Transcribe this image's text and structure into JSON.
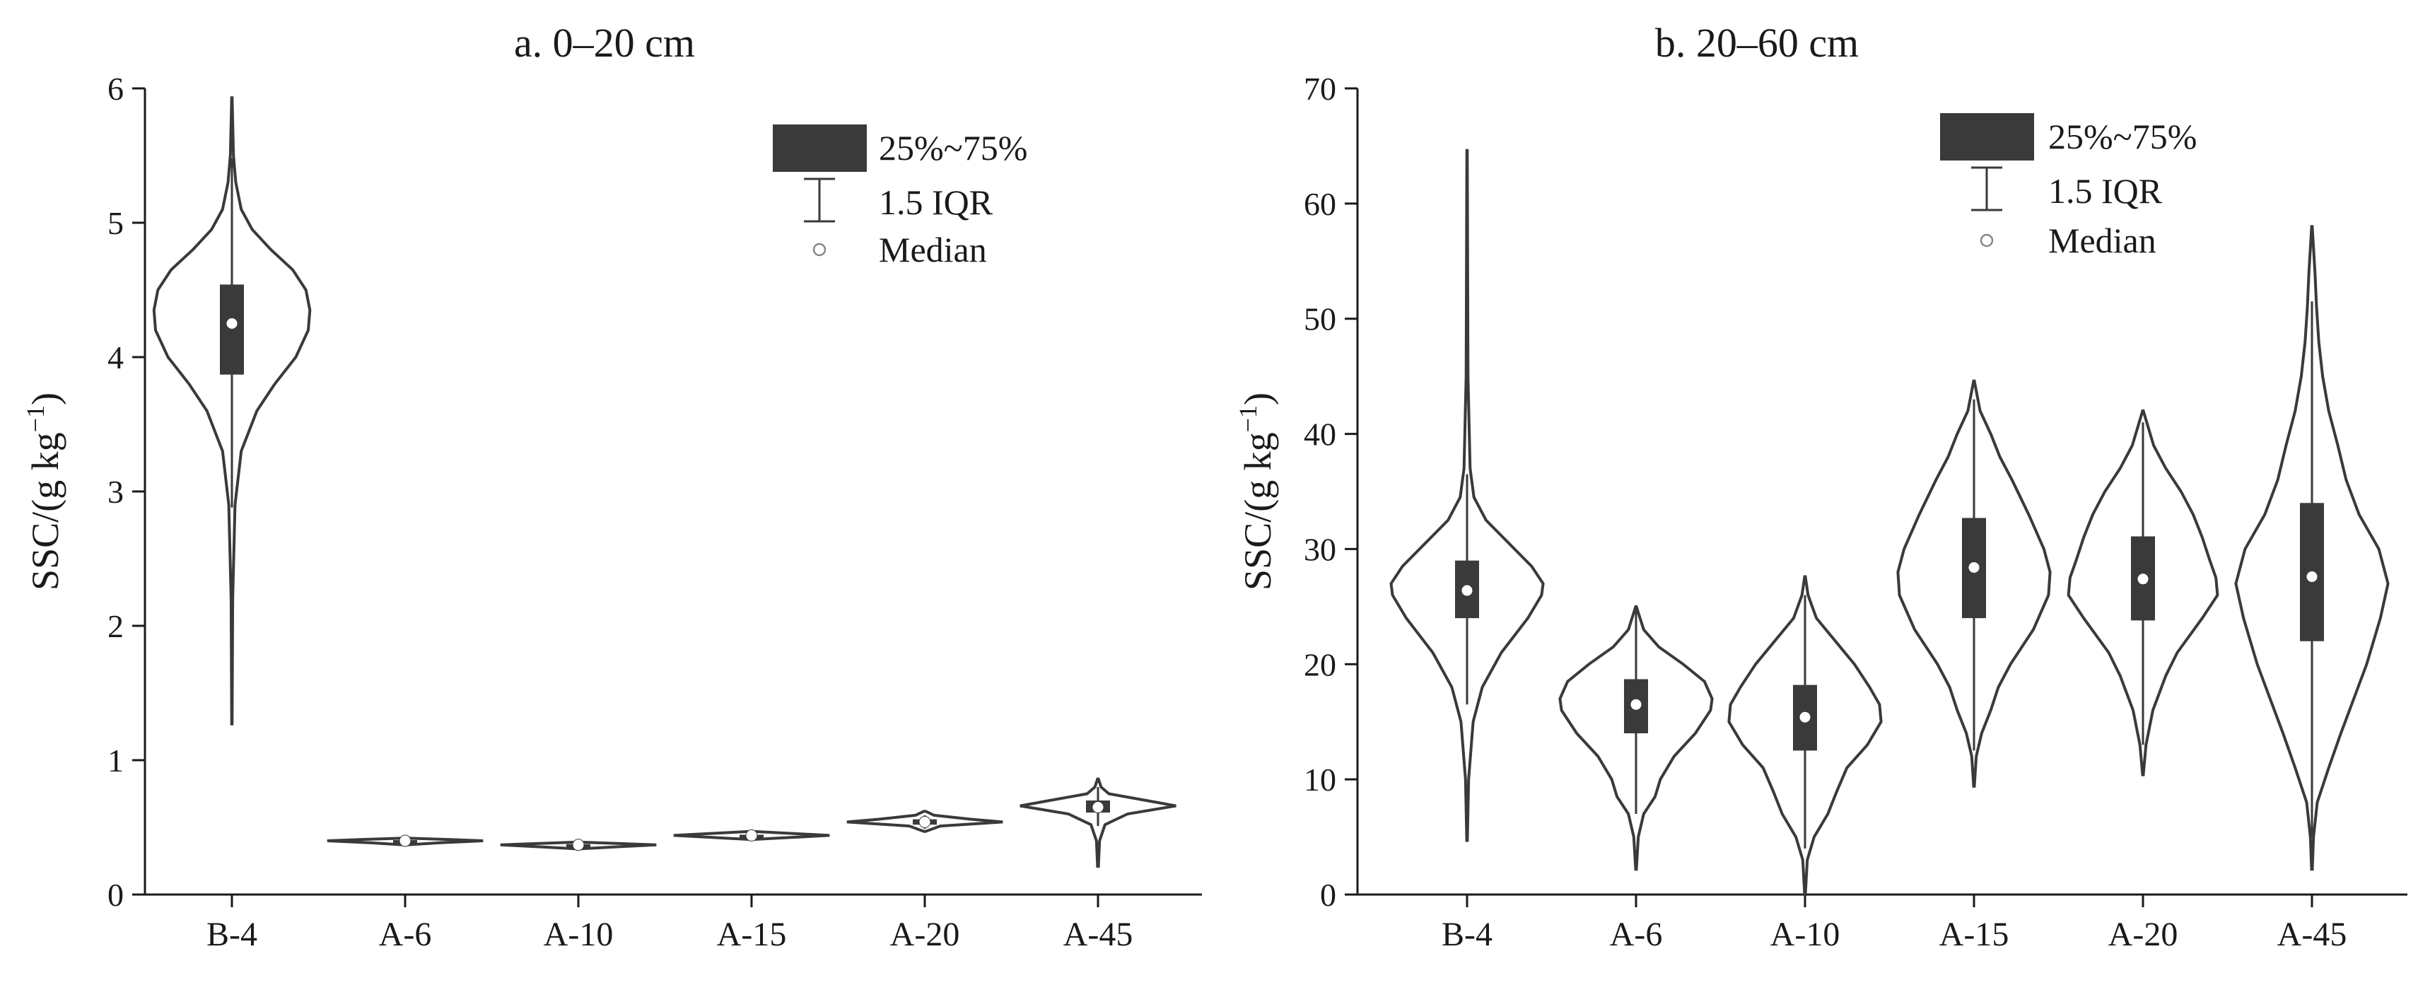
{
  "chart_data": [
    {
      "type": "violin",
      "title": "a. 0–20 cm",
      "ylabel": "SSC/(g kg",
      "ylabel_superscript": "−1",
      "ylabel_close": ")",
      "ylim": [
        0,
        6
      ],
      "yticks": [
        0,
        1,
        2,
        3,
        4,
        5,
        6
      ],
      "categories": [
        "B-4",
        "A-6",
        "A-10",
        "A-15",
        "A-20",
        "A-45"
      ],
      "legend": {
        "box": "25%~75%",
        "whisker": "1.5 IQR",
        "median": "Median"
      },
      "violins": [
        {
          "name": "B-4",
          "min": 1.27,
          "max": 5.93,
          "q1": 3.87,
          "q3": 4.54,
          "median": 4.25,
          "whisker_low": 2.88,
          "whisker_high": 5.48,
          "profile": [
            [
              1.27,
              0.003
            ],
            [
              2.2,
              0.01
            ],
            [
              2.9,
              0.04
            ],
            [
              3.3,
              0.12
            ],
            [
              3.6,
              0.32
            ],
            [
              3.8,
              0.55
            ],
            [
              4.0,
              0.82
            ],
            [
              4.2,
              0.98
            ],
            [
              4.35,
              1.0
            ],
            [
              4.5,
              0.95
            ],
            [
              4.65,
              0.78
            ],
            [
              4.8,
              0.5
            ],
            [
              4.95,
              0.26
            ],
            [
              5.1,
              0.12
            ],
            [
              5.3,
              0.05
            ],
            [
              5.5,
              0.02
            ],
            [
              5.93,
              0.003
            ]
          ]
        },
        {
          "name": "A-6",
          "min": 0.37,
          "max": 0.42,
          "q1": 0.39,
          "q3": 0.405,
          "median": 0.4,
          "whisker_low": 0.38,
          "whisker_high": 0.415,
          "profile": [
            [
              0.37,
              0.02
            ],
            [
              0.385,
              0.45
            ],
            [
              0.4,
              1.0
            ],
            [
              0.41,
              0.55
            ],
            [
              0.42,
              0.02
            ]
          ]
        },
        {
          "name": "A-10",
          "min": 0.34,
          "max": 0.39,
          "q1": 0.36,
          "q3": 0.375,
          "median": 0.37,
          "whisker_low": 0.35,
          "whisker_high": 0.385,
          "profile": [
            [
              0.34,
              0.02
            ],
            [
              0.355,
              0.5
            ],
            [
              0.37,
              1.0
            ],
            [
              0.38,
              0.5
            ],
            [
              0.39,
              0.02
            ]
          ]
        },
        {
          "name": "A-15",
          "min": 0.41,
          "max": 0.47,
          "q1": 0.43,
          "q3": 0.445,
          "median": 0.44,
          "whisker_low": 0.42,
          "whisker_high": 0.455,
          "profile": [
            [
              0.41,
              0.02
            ],
            [
              0.425,
              0.5
            ],
            [
              0.44,
              1.0
            ],
            [
              0.455,
              0.5
            ],
            [
              0.47,
              0.02
            ]
          ]
        },
        {
          "name": "A-20",
          "min": 0.47,
          "max": 0.62,
          "q1": 0.52,
          "q3": 0.56,
          "median": 0.54,
          "whisker_low": 0.49,
          "whisker_high": 0.59,
          "profile": [
            [
              0.47,
              0.01
            ],
            [
              0.51,
              0.2
            ],
            [
              0.54,
              1.0
            ],
            [
              0.56,
              0.6
            ],
            [
              0.59,
              0.12
            ],
            [
              0.62,
              0.01
            ]
          ]
        },
        {
          "name": "A-45",
          "min": 0.21,
          "max": 0.86,
          "q1": 0.61,
          "q3": 0.7,
          "median": 0.65,
          "whisker_low": 0.51,
          "whisker_high": 0.8,
          "profile": [
            [
              0.21,
              0.005
            ],
            [
              0.4,
              0.02
            ],
            [
              0.52,
              0.09
            ],
            [
              0.6,
              0.38
            ],
            [
              0.66,
              1.0
            ],
            [
              0.7,
              0.62
            ],
            [
              0.75,
              0.14
            ],
            [
              0.8,
              0.04
            ],
            [
              0.86,
              0.005
            ]
          ]
        }
      ]
    },
    {
      "type": "violin",
      "title": "b. 20–60 cm",
      "ylabel": "SSC/(g kg",
      "ylabel_superscript": "−1",
      "ylabel_close": ")",
      "ylim": [
        0,
        70
      ],
      "yticks": [
        0,
        10,
        20,
        30,
        40,
        50,
        60,
        70
      ],
      "categories": [
        "B-4",
        "A-6",
        "A-10",
        "A-15",
        "A-20",
        "A-45"
      ],
      "legend": {
        "box": "25%~75%",
        "whisker": "1.5 IQR",
        "median": "Median"
      },
      "violins": [
        {
          "name": "B-4",
          "min": 4.7,
          "max": 64.6,
          "q1": 24.0,
          "q3": 29.0,
          "median": 26.4,
          "whisker_low": 16.5,
          "whisker_high": 36.5,
          "profile": [
            [
              4.7,
              0.004
            ],
            [
              10,
              0.02
            ],
            [
              15,
              0.08
            ],
            [
              18,
              0.2
            ],
            [
              21,
              0.45
            ],
            [
              24,
              0.8
            ],
            [
              26,
              0.98
            ],
            [
              27,
              1.0
            ],
            [
              28.5,
              0.85
            ],
            [
              30.5,
              0.55
            ],
            [
              32.5,
              0.25
            ],
            [
              34.5,
              0.09
            ],
            [
              37,
              0.04
            ],
            [
              45,
              0.012
            ],
            [
              64.6,
              0.003
            ]
          ]
        },
        {
          "name": "A-6",
          "min": 2.2,
          "max": 25.0,
          "q1": 14.0,
          "q3": 18.7,
          "median": 16.5,
          "whisker_low": 7.0,
          "whisker_high": 25.0,
          "profile": [
            [
              2.2,
              0.005
            ],
            [
              5,
              0.03
            ],
            [
              7,
              0.1
            ],
            [
              8.5,
              0.25
            ],
            [
              10,
              0.32
            ],
            [
              12,
              0.5
            ],
            [
              14,
              0.78
            ],
            [
              16,
              0.98
            ],
            [
              17,
              1.0
            ],
            [
              18.5,
              0.9
            ],
            [
              20,
              0.62
            ],
            [
              21.5,
              0.3
            ],
            [
              23,
              0.1
            ],
            [
              25,
              0.005
            ]
          ]
        },
        {
          "name": "A-10",
          "min": 0.0,
          "max": 27.6,
          "q1": 12.5,
          "q3": 18.2,
          "median": 15.4,
          "whisker_low": 4.0,
          "whisker_high": 26.0,
          "profile": [
            [
              0,
              0.005
            ],
            [
              3,
              0.03
            ],
            [
              5,
              0.12
            ],
            [
              7,
              0.3
            ],
            [
              9,
              0.42
            ],
            [
              11,
              0.55
            ],
            [
              13,
              0.82
            ],
            [
              15,
              1.0
            ],
            [
              16.5,
              0.98
            ],
            [
              18,
              0.85
            ],
            [
              20,
              0.65
            ],
            [
              22,
              0.4
            ],
            [
              24,
              0.15
            ],
            [
              26,
              0.04
            ],
            [
              27.6,
              0.005
            ]
          ]
        },
        {
          "name": "A-15",
          "min": 9.4,
          "max": 44.6,
          "q1": 24.0,
          "q3": 32.7,
          "median": 28.4,
          "whisker_low": 12.5,
          "whisker_high": 43.0,
          "profile": [
            [
              9.4,
              0.005
            ],
            [
              12,
              0.03
            ],
            [
              14,
              0.1
            ],
            [
              16,
              0.22
            ],
            [
              18,
              0.32
            ],
            [
              20,
              0.48
            ],
            [
              23,
              0.78
            ],
            [
              26,
              0.98
            ],
            [
              28,
              1.0
            ],
            [
              30,
              0.92
            ],
            [
              33,
              0.72
            ],
            [
              36,
              0.5
            ],
            [
              38,
              0.34
            ],
            [
              40,
              0.22
            ],
            [
              42,
              0.08
            ],
            [
              44.6,
              0.005
            ]
          ]
        },
        {
          "name": "A-20",
          "min": 10.4,
          "max": 42.0,
          "q1": 23.8,
          "q3": 31.1,
          "median": 27.4,
          "whisker_low": 13.0,
          "whisker_high": 41.0,
          "profile": [
            [
              10.4,
              0.005
            ],
            [
              13,
              0.04
            ],
            [
              16,
              0.13
            ],
            [
              19,
              0.3
            ],
            [
              21,
              0.45
            ],
            [
              24,
              0.78
            ],
            [
              26,
              0.98
            ],
            [
              27.5,
              0.96
            ],
            [
              29,
              0.88
            ],
            [
              31,
              0.78
            ],
            [
              33,
              0.66
            ],
            [
              35,
              0.5
            ],
            [
              37,
              0.3
            ],
            [
              39,
              0.14
            ],
            [
              42,
              0.005
            ]
          ]
        },
        {
          "name": "A-45",
          "min": 2.2,
          "max": 58.0,
          "q1": 22.0,
          "q3": 34.0,
          "median": 27.6,
          "whisker_low": 5.0,
          "whisker_high": 51.5,
          "profile": [
            [
              2.2,
              0.005
            ],
            [
              5,
              0.02
            ],
            [
              8,
              0.07
            ],
            [
              11,
              0.22
            ],
            [
              14,
              0.38
            ],
            [
              17,
              0.55
            ],
            [
              20,
              0.72
            ],
            [
              24,
              0.9
            ],
            [
              27,
              1.0
            ],
            [
              30,
              0.88
            ],
            [
              33,
              0.62
            ],
            [
              36,
              0.45
            ],
            [
              39,
              0.34
            ],
            [
              42,
              0.22
            ],
            [
              45,
              0.14
            ],
            [
              48,
              0.09
            ],
            [
              51,
              0.06
            ],
            [
              54,
              0.04
            ],
            [
              58,
              0.004
            ]
          ]
        }
      ]
    }
  ]
}
